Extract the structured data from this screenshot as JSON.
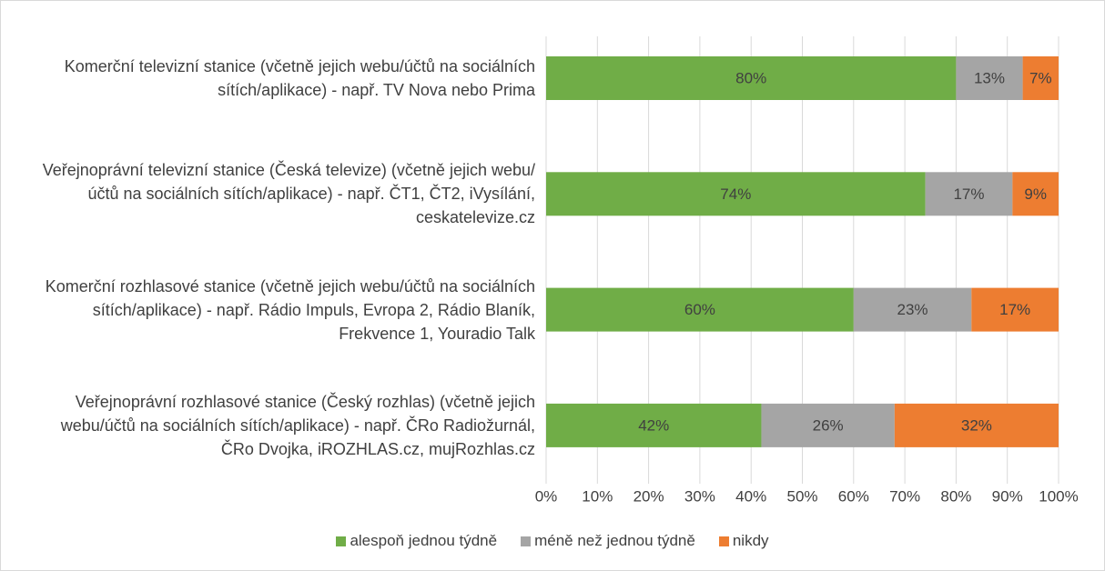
{
  "chart_data": {
    "type": "stacked_bar_horizontal",
    "categories": [
      "Komerční televizní stanice (včetně jejich webu/účtů na sociálních sítích/aplikace) - např. TV Nova nebo Prima",
      "Veřejnoprávní televizní stanice (Česká televize) (včetně jejich webu/účtů na sociálních sítích/aplikace) - např. ČT1, ČT2, iVysílání, ceskatelevize.cz",
      "Komerční rozhlasové stanice (včetně jejich webu/účtů na sociálních sítích/aplikace) - např. Rádio Impuls, Evropa 2, Rádio Blaník, Frekvence 1, Youradio Talk",
      "Veřejnoprávní rozhlasové stanice (Český rozhlas) (včetně jejich webu/účtů na sociálních sítích/aplikace) - např. ČRo Radiožurnál, ČRo Dvojka, iROZHLAS.cz, mujRozhlas.cz"
    ],
    "series": [
      {
        "name": "alespoň jednou týdně",
        "color": "#70ad47",
        "values": [
          80,
          74,
          60,
          42
        ],
        "value_labels": [
          "80%",
          "74%",
          "60%",
          "42%"
        ]
      },
      {
        "name": "méně než jednou týdně",
        "color": "#a5a5a5",
        "values": [
          13,
          17,
          23,
          26
        ],
        "value_labels": [
          "13%",
          "17%",
          "23%",
          "26%"
        ]
      },
      {
        "name": "nikdy",
        "color": "#ed7d31",
        "values": [
          7,
          9,
          17,
          32
        ],
        "value_labels": [
          "7%",
          "9%",
          "17%",
          "32%"
        ]
      }
    ],
    "xlim": [
      0,
      100
    ],
    "xticks": [
      {
        "value": 0,
        "label": "0%"
      },
      {
        "value": 10,
        "label": "10%"
      },
      {
        "value": 20,
        "label": "20%"
      },
      {
        "value": 30,
        "label": "30%"
      },
      {
        "value": 40,
        "label": "40%"
      },
      {
        "value": 50,
        "label": "50%"
      },
      {
        "value": 60,
        "label": "60%"
      },
      {
        "value": 70,
        "label": "70%"
      },
      {
        "value": 80,
        "label": "80%"
      },
      {
        "value": 90,
        "label": "90%"
      },
      {
        "value": 100,
        "label": "100%"
      }
    ],
    "grid": true,
    "legend": "bottom"
  }
}
